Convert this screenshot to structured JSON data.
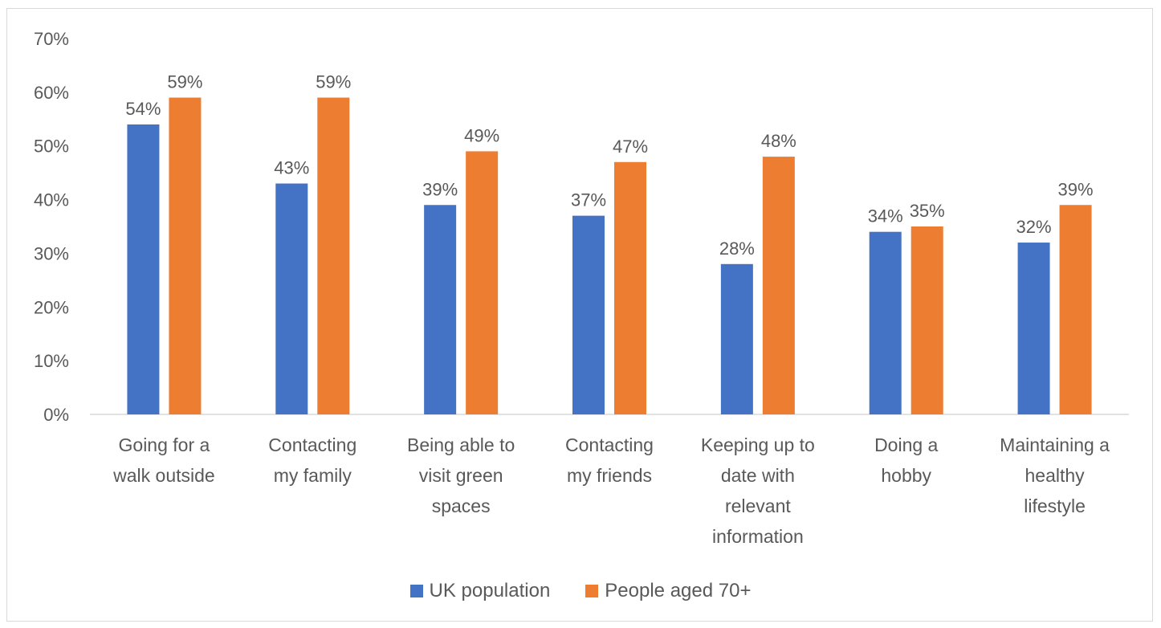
{
  "chart_data": {
    "type": "bar",
    "title": "",
    "xlabel": "",
    "ylabel": "",
    "ylim": [
      0,
      70
    ],
    "y_ticks": [
      "0%",
      "10%",
      "20%",
      "30%",
      "40%",
      "50%",
      "60%",
      "70%"
    ],
    "y_tick_values": [
      0,
      10,
      20,
      30,
      40,
      50,
      60,
      70
    ],
    "categories": [
      [
        "Going for a",
        "walk outside"
      ],
      [
        "Contacting",
        "my family"
      ],
      [
        "Being able to",
        "visit green",
        "spaces"
      ],
      [
        "Contacting",
        "my friends"
      ],
      [
        "Keeping up to",
        "date with",
        "relevant",
        "information"
      ],
      [
        "Doing a",
        "hobby"
      ],
      [
        "Maintaining a",
        "healthy",
        "lifestyle"
      ]
    ],
    "series": [
      {
        "name": "UK population",
        "color": "#4472C4",
        "values": [
          54,
          43,
          39,
          37,
          28,
          34,
          32
        ],
        "labels": [
          "54%",
          "43%",
          "39%",
          "37%",
          "28%",
          "34%",
          "32%"
        ]
      },
      {
        "name": "People aged 70+",
        "color": "#ED7D31",
        "values": [
          59,
          59,
          49,
          47,
          48,
          35,
          39
        ],
        "labels": [
          "59%",
          "59%",
          "49%",
          "47%",
          "48%",
          "35%",
          "39%"
        ]
      }
    ],
    "grid": false,
    "legend_position": "bottom"
  },
  "legend": {
    "uk_label": "UK population",
    "aged_label": "People aged 70+"
  }
}
